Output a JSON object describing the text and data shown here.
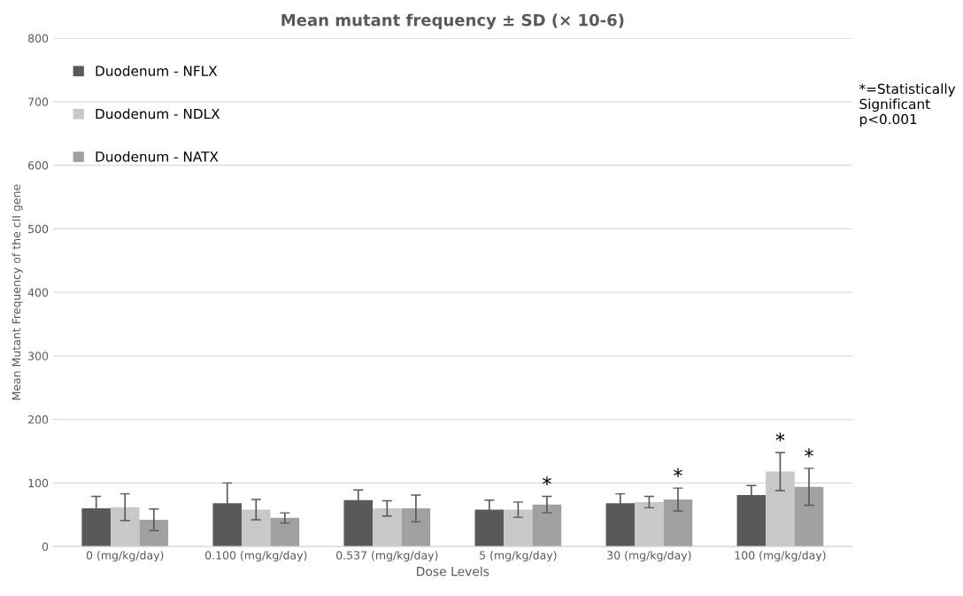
{
  "chart_data": {
    "type": "bar",
    "title": "Mean mutant frequency ± SD (× 10-6)",
    "xlabel": "Dose Levels",
    "ylabel": "Mean Mutant Frequency of the cII gene",
    "categories": [
      "0 (mg/kg/day)",
      "0.100 (mg/kg/day)",
      "0.537 (mg/kg/day)",
      "5 (mg/kg/day)",
      "30 (mg/kg/day)",
      "100 (mg/kg/day)"
    ],
    "series": [
      {
        "name": "Duodenum - NFLX",
        "color": "#595959",
        "values": [
          60,
          68,
          73,
          58,
          68,
          81
        ],
        "errors": [
          19,
          32,
          16,
          15,
          15,
          15
        ]
      },
      {
        "name": "Duodenum - NDLX",
        "color": "#c8c8c8",
        "values": [
          62,
          58,
          60,
          58,
          70,
          118
        ],
        "errors": [
          21,
          16,
          12,
          12,
          9,
          30
        ],
        "value_labels": [
          null,
          null,
          null,
          null,
          null,
          "*"
        ]
      },
      {
        "name": "Duodenum - NATX",
        "color": "#a0a0a0",
        "values": [
          42,
          45,
          60,
          66,
          74,
          94
        ],
        "errors": [
          17,
          8,
          21,
          13,
          18,
          29
        ],
        "value_labels": [
          null,
          null,
          null,
          "*",
          "*",
          "*"
        ]
      }
    ],
    "ylim": [
      0,
      800
    ],
    "yticks": [
      0,
      100,
      200,
      300,
      400,
      500,
      600,
      700,
      800
    ],
    "grid": "y",
    "legend": "top left",
    "annotations": [
      "*=Statistically\nSignificant\np<0.001"
    ]
  }
}
